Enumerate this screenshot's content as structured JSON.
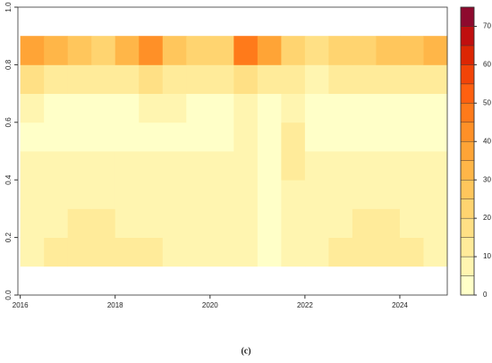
{
  "chart_data": {
    "type": "heatmap",
    "caption": "(c)",
    "x": [
      2016.25,
      2016.75,
      2017.25,
      2017.75,
      2018.25,
      2018.75,
      2019.25,
      2019.75,
      2020.25,
      2020.75,
      2021.25,
      2021.75,
      2022.25,
      2022.75,
      2023.25,
      2023.75,
      2024.25,
      2024.75
    ],
    "y": [
      0.15,
      0.25,
      0.35,
      0.45,
      0.55,
      0.65,
      0.75,
      0.85
    ],
    "z": [
      [
        9,
        10,
        12,
        12,
        11,
        10,
        9,
        9,
        9,
        9,
        2,
        8,
        9,
        11,
        12,
        12,
        10,
        9
      ],
      [
        8,
        9,
        10,
        10,
        9,
        8,
        8,
        7,
        7,
        7,
        2,
        7,
        8,
        9,
        10,
        10,
        9,
        8
      ],
      [
        6,
        7,
        8,
        8,
        7,
        7,
        6,
        6,
        6,
        6,
        2,
        6,
        7,
        7,
        8,
        8,
        7,
        6
      ],
      [
        5,
        5,
        6,
        6,
        5,
        5,
        5,
        5,
        5,
        5,
        2,
        12,
        5,
        5,
        5,
        5,
        5,
        5
      ],
      [
        4,
        4,
        4,
        4,
        4,
        4,
        4,
        4,
        4,
        5,
        2,
        12,
        4,
        4,
        4,
        4,
        4,
        4
      ],
      [
        5,
        4,
        4,
        4,
        4,
        5,
        5,
        4,
        4,
        6,
        3,
        6,
        4,
        4,
        4,
        4,
        4,
        4
      ],
      [
        15,
        12,
        10,
        10,
        12,
        15,
        10,
        10,
        12,
        18,
        12,
        10,
        8,
        10,
        10,
        10,
        12,
        12
      ],
      [
        35,
        30,
        25,
        20,
        32,
        40,
        25,
        20,
        22,
        45,
        35,
        20,
        18,
        22,
        20,
        25,
        28,
        30
      ]
    ],
    "xlim": [
      2015.95,
      2025
    ],
    "ylim": [
      0,
      1
    ],
    "xticks": [
      2016,
      2018,
      2020,
      2022,
      2024
    ],
    "yticks": [
      {
        "value": 0,
        "label": "0.0"
      },
      0.2,
      0.4,
      0.6,
      0.8,
      {
        "value": 1,
        "label": "1.0"
      }
    ],
    "colorbar": {
      "levels": [
        0,
        5,
        10,
        15,
        20,
        25,
        30,
        35,
        40,
        45,
        50,
        55,
        60,
        65,
        70,
        75
      ],
      "colors": [
        "#FFFFC8",
        "#FFF5B0",
        "#FFEB9A",
        "#FFE085",
        "#FFD470",
        "#FFC65C",
        "#FFB648",
        "#FFA436",
        "#FF9027",
        "#FF7A1A",
        "#FF6010",
        "#F24408",
        "#DC2604",
        "#C00F0F",
        "#8E0A2E"
      ],
      "ticks": [
        0,
        10,
        20,
        30,
        40,
        50,
        60,
        70
      ]
    }
  }
}
